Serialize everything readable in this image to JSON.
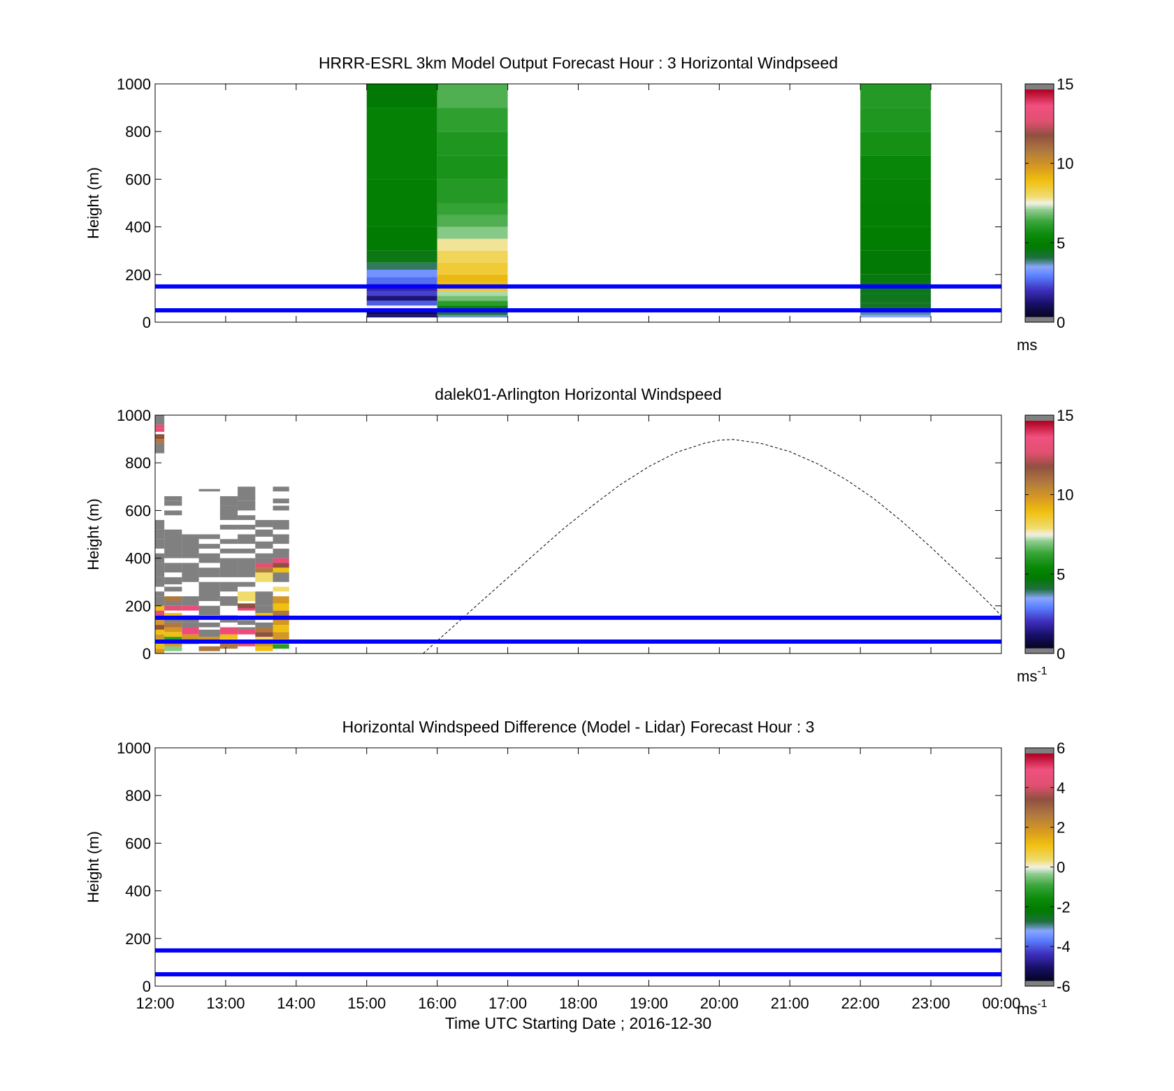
{
  "figure": {
    "xlabel": "Time UTC  Starting Date ; 2016-12-30",
    "x_ticks": [
      "12:00",
      "13:00",
      "14:00",
      "15:00",
      "16:00",
      "17:00",
      "18:00",
      "19:00",
      "20:00",
      "21:00",
      "22:00",
      "23:00",
      "00:00"
    ],
    "y_ticks": [
      "0",
      "200",
      "400",
      "600",
      "800",
      "1000"
    ],
    "reference_lines_m": [
      50,
      150
    ],
    "reference_line_color": "#0000ff"
  },
  "chart_data": [
    {
      "type": "heatmap",
      "title": "HRRR-ESRL 3km Model Output   Forecast Hour : 3 Horizontal Windpseed",
      "ylabel": "Height (m)",
      "xlim": [
        0,
        12
      ],
      "ylim": [
        0,
        1000
      ],
      "colorbar": {
        "ticks": [
          "0",
          "5",
          "10",
          "15"
        ],
        "range": [
          0,
          15
        ],
        "unit": "ms",
        "unit_sup": ""
      },
      "columns": [
        {
          "x0": 3,
          "x1": 4,
          "cells": [
            [
              20,
              30,
              1.0
            ],
            [
              30,
              50,
              0.5
            ],
            [
              50,
              70,
              7.5
            ],
            [
              70,
              90,
              2.3
            ],
            [
              90,
              110,
              1.0
            ],
            [
              110,
              130,
              2.0
            ],
            [
              130,
              160,
              1.5
            ],
            [
              160,
              190,
              2.5
            ],
            [
              190,
              220,
              3.0
            ],
            [
              220,
              250,
              3.8
            ],
            [
              250,
              300,
              4.4
            ],
            [
              300,
              400,
              4.7
            ],
            [
              400,
              600,
              4.9
            ],
            [
              600,
              900,
              5.0
            ],
            [
              900,
              1000,
              4.6
            ]
          ]
        },
        {
          "x0": 4,
          "x1": 5,
          "cells": [
            [
              20,
              30,
              3.5
            ],
            [
              30,
              50,
              3.9
            ],
            [
              50,
              70,
              5.0
            ],
            [
              70,
              90,
              6.0
            ],
            [
              90,
              110,
              6.8
            ],
            [
              110,
              130,
              7.2
            ],
            [
              130,
              150,
              8.8
            ],
            [
              150,
              170,
              9.0
            ],
            [
              170,
              200,
              9.2
            ],
            [
              200,
              250,
              8.6
            ],
            [
              250,
              300,
              8.2
            ],
            [
              300,
              350,
              7.8
            ],
            [
              350,
              400,
              7.0
            ],
            [
              400,
              450,
              6.5
            ],
            [
              450,
              500,
              6.2
            ],
            [
              500,
              600,
              5.9
            ],
            [
              600,
              700,
              5.7
            ],
            [
              700,
              800,
              5.8
            ],
            [
              800,
              900,
              6.1
            ],
            [
              900,
              1000,
              6.5
            ]
          ]
        },
        {
          "x0": 10,
          "x1": 11,
          "cells": [
            [
              20,
              30,
              3.3
            ],
            [
              30,
              50,
              3.6
            ],
            [
              50,
              80,
              4.2
            ],
            [
              80,
              120,
              4.3
            ],
            [
              120,
              170,
              4.4
            ],
            [
              170,
              200,
              4.5
            ],
            [
              200,
              300,
              4.6
            ],
            [
              300,
              400,
              4.8
            ],
            [
              400,
              500,
              4.9
            ],
            [
              500,
              600,
              5.0
            ],
            [
              600,
              700,
              5.2
            ],
            [
              700,
              800,
              5.6
            ],
            [
              800,
              900,
              5.8
            ],
            [
              900,
              1000,
              5.9
            ]
          ]
        }
      ]
    },
    {
      "type": "heatmap",
      "title": "dalek01-Arlington  Horizontal Windspeed",
      "ylabel": "Height (m)",
      "xlim": [
        0,
        12
      ],
      "ylim": [
        0,
        1000
      ],
      "colorbar": {
        "ticks": [
          "0",
          "5",
          "10",
          "15"
        ],
        "range": [
          0,
          15
        ],
        "unit": "ms",
        "unit_sup": "-1"
      },
      "columns": [
        {
          "x0": 0.0,
          "x1": 0.13,
          "cells": [
            [
              0,
              20,
              10
            ],
            [
              20,
              40,
              9
            ],
            [
              40,
              60,
              7
            ],
            [
              60,
              80,
              10
            ],
            [
              80,
              100,
              9
            ],
            [
              100,
              120,
              12
            ],
            [
              120,
              140,
              10
            ],
            [
              140,
              160,
              11
            ],
            [
              160,
              180,
              13
            ],
            [
              180,
              200,
              9
            ],
            [
              200,
              240,
              -1
            ],
            [
              240,
              260,
              -1
            ],
            [
              280,
              320,
              -1
            ],
            [
              320,
              380,
              -1
            ],
            [
              380,
              420,
              -1
            ],
            [
              440,
              480,
              -1
            ],
            [
              480,
              520,
              -1
            ],
            [
              520,
              560,
              -1
            ],
            [
              840,
              880,
              -1
            ],
            [
              880,
              900,
              11
            ],
            [
              900,
              920,
              12
            ],
            [
              930,
              945,
              13
            ],
            [
              945,
              960,
              14
            ],
            [
              960,
              1000,
              -1
            ]
          ]
        },
        {
          "x0": 0.13,
          "x1": 0.38,
          "cells": [
            [
              10,
              30,
              7
            ],
            [
              30,
              50,
              10
            ],
            [
              50,
              70,
              6
            ],
            [
              70,
              90,
              9
            ],
            [
              90,
              110,
              10
            ],
            [
              110,
              130,
              11
            ],
            [
              130,
              150,
              -1
            ],
            [
              150,
              170,
              9
            ],
            [
              180,
              200,
              13
            ],
            [
              200,
              220,
              -1
            ],
            [
              220,
              240,
              11
            ],
            [
              260,
              280,
              -1
            ],
            [
              290,
              320,
              -1
            ],
            [
              340,
              380,
              -1
            ],
            [
              400,
              520,
              -1
            ],
            [
              580,
              600,
              -1
            ],
            [
              620,
              640,
              -1
            ],
            [
              640,
              660,
              -1
            ]
          ]
        },
        {
          "x0": 0.38,
          "x1": 0.62,
          "cells": [
            [
              40,
              60,
              6
            ],
            [
              60,
              80,
              10
            ],
            [
              80,
              110,
              14
            ],
            [
              110,
              130,
              -1
            ],
            [
              130,
              160,
              -1
            ],
            [
              180,
              200,
              14
            ],
            [
              200,
              240,
              -1
            ],
            [
              300,
              380,
              -1
            ],
            [
              400,
              500,
              -1
            ]
          ]
        },
        {
          "x0": 0.62,
          "x1": 0.92,
          "cells": [
            [
              10,
              30,
              11
            ],
            [
              50,
              70,
              10
            ],
            [
              70,
              100,
              -1
            ],
            [
              110,
              130,
              -1
            ],
            [
              160,
              200,
              -1
            ],
            [
              220,
              300,
              -1
            ],
            [
              320,
              360,
              -1
            ],
            [
              380,
              420,
              -1
            ],
            [
              440,
              460,
              -1
            ],
            [
              480,
              500,
              -1
            ],
            [
              680,
              690,
              -1
            ]
          ]
        },
        {
          "x0": 0.92,
          "x1": 1.17,
          "cells": [
            [
              20,
              50,
              11
            ],
            [
              60,
              80,
              9
            ],
            [
              80,
              110,
              14
            ],
            [
              130,
              160,
              -1
            ],
            [
              200,
              240,
              -1
            ],
            [
              260,
              300,
              -1
            ],
            [
              320,
              400,
              -1
            ],
            [
              420,
              440,
              -1
            ],
            [
              460,
              480,
              -1
            ],
            [
              520,
              540,
              -1
            ],
            [
              560,
              620,
              -1
            ],
            [
              620,
              660,
              -1
            ]
          ]
        },
        {
          "x0": 1.17,
          "x1": 1.42,
          "cells": [
            [
              30,
              50,
              13
            ],
            [
              80,
              100,
              14
            ],
            [
              100,
              110,
              -1
            ],
            [
              120,
              140,
              -1
            ],
            [
              180,
              200,
              14
            ],
            [
              190,
              210,
              12
            ],
            [
              220,
              260,
              8
            ],
            [
              280,
              300,
              -1
            ],
            [
              320,
              400,
              -1
            ],
            [
              420,
              440,
              -1
            ],
            [
              460,
              500,
              -1
            ],
            [
              520,
              540,
              -1
            ],
            [
              560,
              580,
              -1
            ],
            [
              600,
              640,
              -1
            ],
            [
              640,
              700,
              -1
            ]
          ]
        },
        {
          "x0": 1.42,
          "x1": 1.67,
          "cells": [
            [
              10,
              30,
              9
            ],
            [
              30,
              50,
              10
            ],
            [
              50,
              70,
              8
            ],
            [
              70,
              90,
              12
            ],
            [
              90,
              110,
              11
            ],
            [
              110,
              130,
              -1
            ],
            [
              150,
              170,
              9
            ],
            [
              170,
              200,
              -1
            ],
            [
              200,
              260,
              -1
            ],
            [
              300,
              340,
              8
            ],
            [
              340,
              360,
              11
            ],
            [
              360,
              380,
              13
            ],
            [
              380,
              400,
              -1
            ],
            [
              400,
              420,
              -1
            ],
            [
              440,
              470,
              -1
            ],
            [
              490,
              520,
              -1
            ],
            [
              530,
              560,
              -1
            ]
          ]
        },
        {
          "x0": 1.67,
          "x1": 1.9,
          "cells": [
            [
              20,
              40,
              6
            ],
            [
              40,
              60,
              8
            ],
            [
              60,
              90,
              10
            ],
            [
              90,
              120,
              9
            ],
            [
              120,
              150,
              10
            ],
            [
              150,
              180,
              11
            ],
            [
              180,
              210,
              9
            ],
            [
              210,
              240,
              10
            ],
            [
              260,
              280,
              8
            ],
            [
              300,
              340,
              -1
            ],
            [
              340,
              360,
              9
            ],
            [
              360,
              380,
              12
            ],
            [
              380,
              400,
              14
            ],
            [
              400,
              440,
              -1
            ],
            [
              460,
              500,
              -1
            ],
            [
              520,
              560,
              -1
            ],
            [
              600,
              620,
              -1
            ],
            [
              630,
              650,
              -1
            ],
            [
              680,
              700,
              -1
            ]
          ]
        }
      ],
      "curve": {
        "style": "dashed",
        "x": [
          3.8,
          4.2,
          4.6,
          5.0,
          5.4,
          5.8,
          6.2,
          6.6,
          7.0,
          7.4,
          7.8,
          8.0,
          8.2,
          8.6,
          9.0,
          9.4,
          9.8,
          10.2,
          10.6,
          11.0,
          11.4,
          11.8,
          12.0
        ],
        "y": [
          0,
          106,
          212,
          317,
          422,
          526,
          620,
          709,
          784,
          845,
          883,
          895,
          898,
          881,
          847,
          795,
          729,
          648,
          552,
          446,
          334,
          219,
          158
        ]
      }
    },
    {
      "type": "heatmap",
      "title": "Horizontal Windspeed Difference (Model - Lidar) Forecast Hour : 3",
      "ylabel": "Height (m)",
      "xlim": [
        0,
        12
      ],
      "ylim": [
        0,
        1000
      ],
      "colorbar": {
        "ticks": [
          "-6",
          "-4",
          "-2",
          "0",
          "2",
          "4",
          "6"
        ],
        "range": [
          -6,
          6
        ],
        "unit": "ms",
        "unit_sup": "-1"
      },
      "columns": []
    }
  ]
}
